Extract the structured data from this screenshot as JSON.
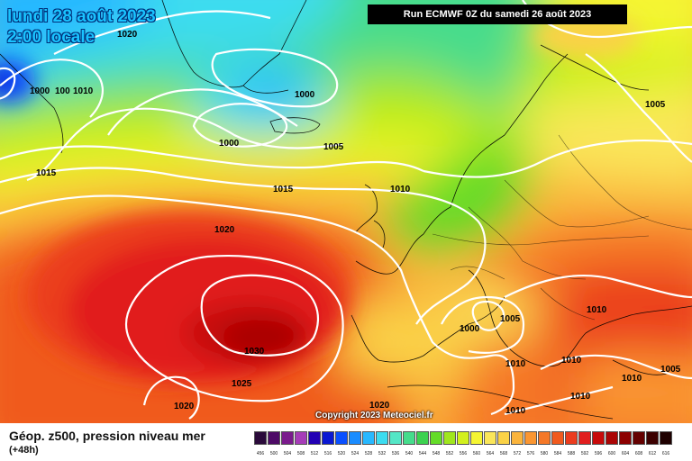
{
  "header": {
    "date_line": "lundi 28 août 2023",
    "time_line": "2:00 locale",
    "run_info": "Run ECMWF 0Z du samedi 26 août 2023"
  },
  "footer": {
    "title": "Géop. z500, pression niveau mer",
    "lead": "(+48h)",
    "copyright": "Copyright 2023 Meteociel.fr"
  },
  "isobar_labels": [
    "1020",
    "1000",
    "100",
    "1010",
    "1000",
    "1000",
    "1005",
    "1015",
    "1015",
    "1010",
    "1020",
    "1030",
    "1025",
    "1020",
    "1000",
    "1005",
    "1010",
    "1010",
    "1010",
    "1005",
    "1010",
    "1010",
    "1020",
    "1010",
    "1005"
  ],
  "legend": {
    "ticks": [
      "456",
      "500",
      "504",
      "508",
      "512",
      "516",
      "520",
      "524",
      "528",
      "532",
      "536",
      "540",
      "544",
      "548",
      "552",
      "556",
      "560",
      "564",
      "568",
      "572",
      "576",
      "580",
      "584",
      "588",
      "592",
      "596",
      "600",
      "604",
      "608",
      "612",
      "616"
    ],
    "colors": [
      "#2a0a3a",
      "#4d0a66",
      "#7a1a8c",
      "#a63cb8",
      "#2200b4",
      "#0a18d2",
      "#0a50ff",
      "#1a8cff",
      "#28b8ff",
      "#3cdcf0",
      "#54e6c6",
      "#46dc8c",
      "#3cd250",
      "#64dc28",
      "#a0e61e",
      "#d2f01e",
      "#f5f532",
      "#fae65a",
      "#fad246",
      "#fab43c",
      "#fa9632",
      "#f57828",
      "#f05a1e",
      "#eb3c1e",
      "#e11e1e",
      "#c80a0a",
      "#aa0505",
      "#8c0000",
      "#640000",
      "#3c0000",
      "#1e0000"
    ]
  }
}
